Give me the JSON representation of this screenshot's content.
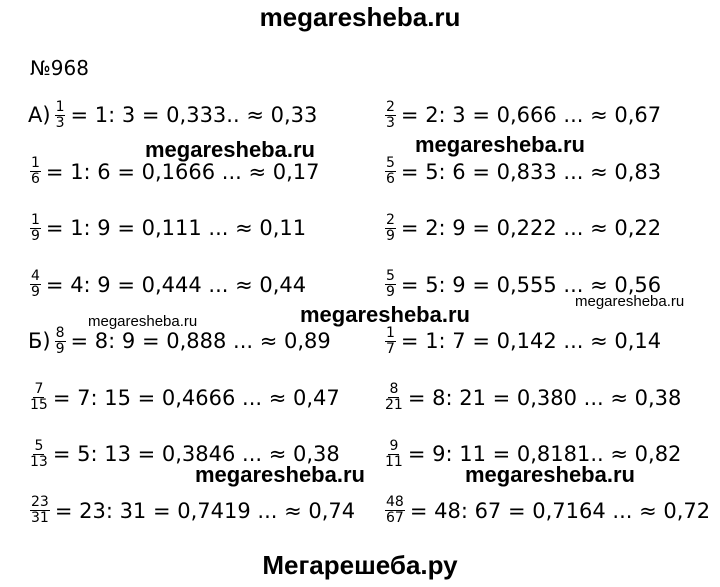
{
  "header": {
    "site": "megaresheba.ru",
    "number": "№968"
  },
  "rows": [
    {
      "left": {
        "prefix": "А)",
        "num": "1",
        "den": "3",
        "rest": "= 1: 3 = 0,333.. ≈ 0,33"
      },
      "right": {
        "num": "2",
        "den": "3",
        "rest": "= 2: 3 = 0,666 ... ≈ 0,67"
      }
    },
    {
      "left": {
        "num": "1",
        "den": "6",
        "rest": "= 1: 6 = 0,1666 ... ≈ 0,17"
      },
      "right": {
        "num": "5",
        "den": "6",
        "rest": "= 5: 6 = 0,833 ... ≈ 0,83"
      }
    },
    {
      "left": {
        "num": "1",
        "den": "9",
        "rest": "= 1: 9 = 0,111 ... ≈ 0,11"
      },
      "right": {
        "num": "2",
        "den": "9",
        "rest": "= 2: 9 = 0,222 ... ≈ 0,22"
      }
    },
    {
      "left": {
        "num": "4",
        "den": "9",
        "rest": "= 4: 9 = 0,444 ... ≈ 0,44"
      },
      "right": {
        "num": "5",
        "den": "9",
        "rest": "= 5: 9 = 0,555 ... ≈ 0,56"
      }
    },
    {
      "left": {
        "prefix": "Б)",
        "num": "8",
        "den": "9",
        "rest": "= 8: 9 = 0,888 ... ≈ 0,89"
      },
      "right": {
        "num": "1",
        "den": "7",
        "rest": "= 1: 7 = 0,142 ... ≈ 0,14"
      }
    },
    {
      "left": {
        "num": "7",
        "den": "15",
        "rest": "= 7: 15 = 0,4666 ... ≈ 0,47"
      },
      "right": {
        "num": "8",
        "den": "21",
        "rest": "= 8: 21 = 0,380 ... ≈ 0,38"
      }
    },
    {
      "left": {
        "num": "5",
        "den": "13",
        "rest": "= 5: 13 = 0,3846 ... ≈ 0,38"
      },
      "right": {
        "num": "9",
        "den": "11",
        "rest": "= 9: 11 = 0,8181.. ≈ 0,82"
      }
    },
    {
      "left": {
        "num": "23",
        "den": "31",
        "rest": "= 23: 31 = 0,7419 ... ≈ 0,74"
      },
      "right": {
        "num": "48",
        "den": "67",
        "rest": "= 48: 67 = 0,7164 ... ≈ 0,72"
      }
    }
  ],
  "watermarks": [
    "megaresheba.ru",
    "megaresheba.ru",
    "megaresheba.ru",
    "megaresheba.ru",
    "megaresheba.ru",
    "megaresheba.ru",
    "megaresheba.ru"
  ],
  "footer": "Мегарешеба.ру"
}
